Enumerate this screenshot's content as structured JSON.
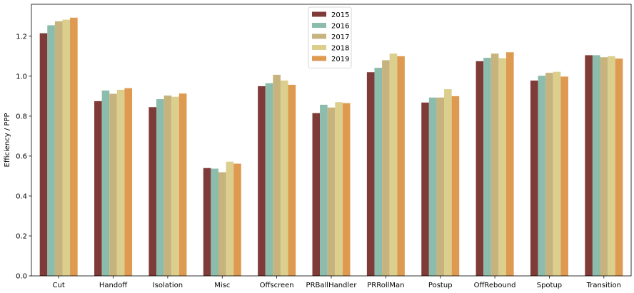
{
  "chart_data": {
    "type": "bar",
    "title": "",
    "xlabel": "",
    "ylabel": "Efficiency / PPP",
    "ylim": [
      0,
      1.36
    ],
    "yticks": [
      0.0,
      0.2,
      0.4,
      0.6,
      0.8,
      1.0,
      1.2
    ],
    "ytick_labels": [
      "0.0",
      "0.2",
      "0.4",
      "0.6",
      "0.8",
      "1.0",
      "1.2"
    ],
    "grid": false,
    "legend_position": "top-center",
    "categories": [
      "Cut",
      "Handoff",
      "Isolation",
      "Misc",
      "Offscreen",
      "PRBallHandler",
      "PRRollMan",
      "Postup",
      "OffRebound",
      "Spotup",
      "Transition"
    ],
    "series": [
      {
        "name": "2015",
        "color": "#7f3b38",
        "values": [
          1.215,
          0.875,
          0.845,
          0.54,
          0.95,
          0.815,
          1.02,
          0.868,
          1.075,
          0.978,
          1.105
        ]
      },
      {
        "name": "2016",
        "color": "#8bbcac",
        "values": [
          1.255,
          0.928,
          0.885,
          0.537,
          0.965,
          0.857,
          1.042,
          0.893,
          1.092,
          1.002,
          1.105
        ]
      },
      {
        "name": "2017",
        "color": "#c6b37e",
        "values": [
          1.275,
          0.912,
          0.903,
          0.519,
          1.007,
          0.843,
          1.08,
          0.893,
          1.113,
          1.017,
          1.095
        ]
      },
      {
        "name": "2018",
        "color": "#dccf8d",
        "values": [
          1.283,
          0.932,
          0.897,
          0.572,
          0.978,
          0.87,
          1.113,
          0.935,
          1.09,
          1.022,
          1.1
        ]
      },
      {
        "name": "2019",
        "color": "#de9a50",
        "values": [
          1.293,
          0.94,
          0.913,
          0.562,
          0.957,
          0.865,
          1.1,
          0.9,
          1.12,
          0.998,
          1.088
        ]
      }
    ]
  }
}
